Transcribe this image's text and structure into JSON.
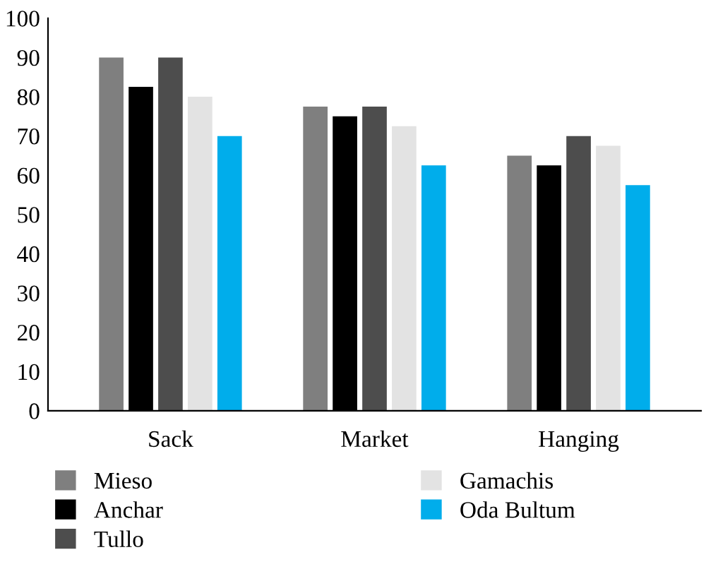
{
  "chart_data": {
    "type": "bar",
    "categories": [
      "Sack",
      "Market",
      "Hanging"
    ],
    "series": [
      {
        "name": "Mieso",
        "color": "#7f7f7f",
        "values": [
          90,
          77.5,
          65
        ]
      },
      {
        "name": "Anchar",
        "color": "#000000",
        "values": [
          82.5,
          75,
          62.5
        ]
      },
      {
        "name": "Tullo",
        "color": "#4d4d4d",
        "values": [
          90,
          77.5,
          70
        ]
      },
      {
        "name": "Gamachis",
        "color": "#e3e3e3",
        "values": [
          80,
          72.5,
          67.5
        ]
      },
      {
        "name": "Oda Bultum",
        "color": "#00adeb",
        "values": [
          70,
          62.5,
          57.5
        ]
      }
    ],
    "ylim": [
      0,
      100
    ],
    "yticks": [
      0,
      10,
      20,
      30,
      40,
      50,
      60,
      70,
      80,
      90,
      100
    ],
    "grid": false,
    "legend": "bottom"
  }
}
